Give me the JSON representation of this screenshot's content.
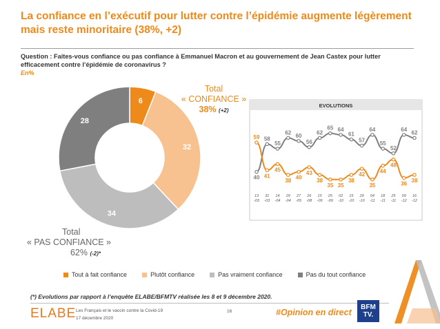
{
  "title": "La confiance en l’exécutif pour lutter contre l’épidémie augmente légèrement mais reste minoritaire (38%, +2)",
  "question": "Question : Faites-vous confiance ou pas confiance à Emmanuel Macron et au gouvernement de Jean Castex pour lutter efficacement contre l’épidémie de coronavirus ?",
  "unit_note": "En%",
  "total_confiance": {
    "label": "Total",
    "name": "« CONFIANCE »",
    "pct": "38%",
    "change": "(+2)"
  },
  "total_pas_confiance": {
    "label": "Total",
    "name": "« PAS CONFIANCE »",
    "pct": "62%",
    "change": "(-2)*"
  },
  "legend": [
    {
      "label": "Tout à fait confiance",
      "color": "#ee8a1a"
    },
    {
      "label": "Plutôt confiance",
      "color": "#f7c190"
    },
    {
      "label": "Pas vraiment confiance",
      "color": "#bdbdbd"
    },
    {
      "label": "Pas du tout confiance",
      "color": "#7f7f7f"
    }
  ],
  "footnote": "(*) Evolutions par rapport à l’enquête ELABE/BFMTV réalisée les 8 et 9 décembre 2020.",
  "footer": {
    "logo": "ELABE",
    "line1": "Les Français et le vaccin contre la Covid-19",
    "line2": "17 décembre 2020",
    "page": "16",
    "hashtag": "#Opinion en direct",
    "bfm_line1": "BFM",
    "bfm_line2": "TV."
  },
  "chart_data": [
    {
      "type": "pie",
      "donut": true,
      "categories": [
        "Tout à fait confiance",
        "Plutôt confiance",
        "Pas vraiment confiance",
        "Pas du tout confiance"
      ],
      "values": [
        6,
        32,
        34,
        28
      ],
      "colors": [
        "#ee8a1a",
        "#f7c190",
        "#bdbdbd",
        "#7f7f7f"
      ]
    },
    {
      "type": "line",
      "title": "EVOLUTIONS",
      "x": [
        "13-03",
        "31-03",
        "14-04",
        "29-04",
        "27-05",
        "26-08",
        "15-09",
        "25-09",
        "02-10",
        "15-10",
        "29-10",
        "04-11",
        "18-11",
        "25-11",
        "09-12",
        "16-12"
      ],
      "x_labels": [
        [
          "13",
          "-03"
        ],
        [
          "31",
          "-03"
        ],
        [
          "14",
          "-04"
        ],
        [
          "29",
          "-04"
        ],
        [
          "27",
          "-05"
        ],
        [
          "26",
          "-08"
        ],
        [
          "15",
          "-09"
        ],
        [
          "25",
          "-09"
        ],
        [
          "02",
          "-10"
        ],
        [
          "15",
          "-10"
        ],
        [
          "29",
          "-10"
        ],
        [
          "04",
          "-11"
        ],
        [
          "18",
          "-11"
        ],
        [
          "25",
          "-11"
        ],
        [
          "09",
          "-12"
        ],
        [
          "16",
          "-12"
        ]
      ],
      "series": [
        {
          "color": "#7f7f7f",
          "values": [
            40,
            58,
            55,
            62,
            60,
            56,
            62,
            65,
            64,
            61,
            57,
            64,
            55,
            52,
            64,
            62
          ]
        },
        {
          "color": "#ee8a1a",
          "values": [
            59,
            41,
            45,
            38,
            40,
            43,
            38,
            35,
            35,
            38,
            42,
            35,
            44,
            48,
            36,
            38
          ]
        }
      ],
      "ylim": [
        30,
        72
      ]
    }
  ]
}
